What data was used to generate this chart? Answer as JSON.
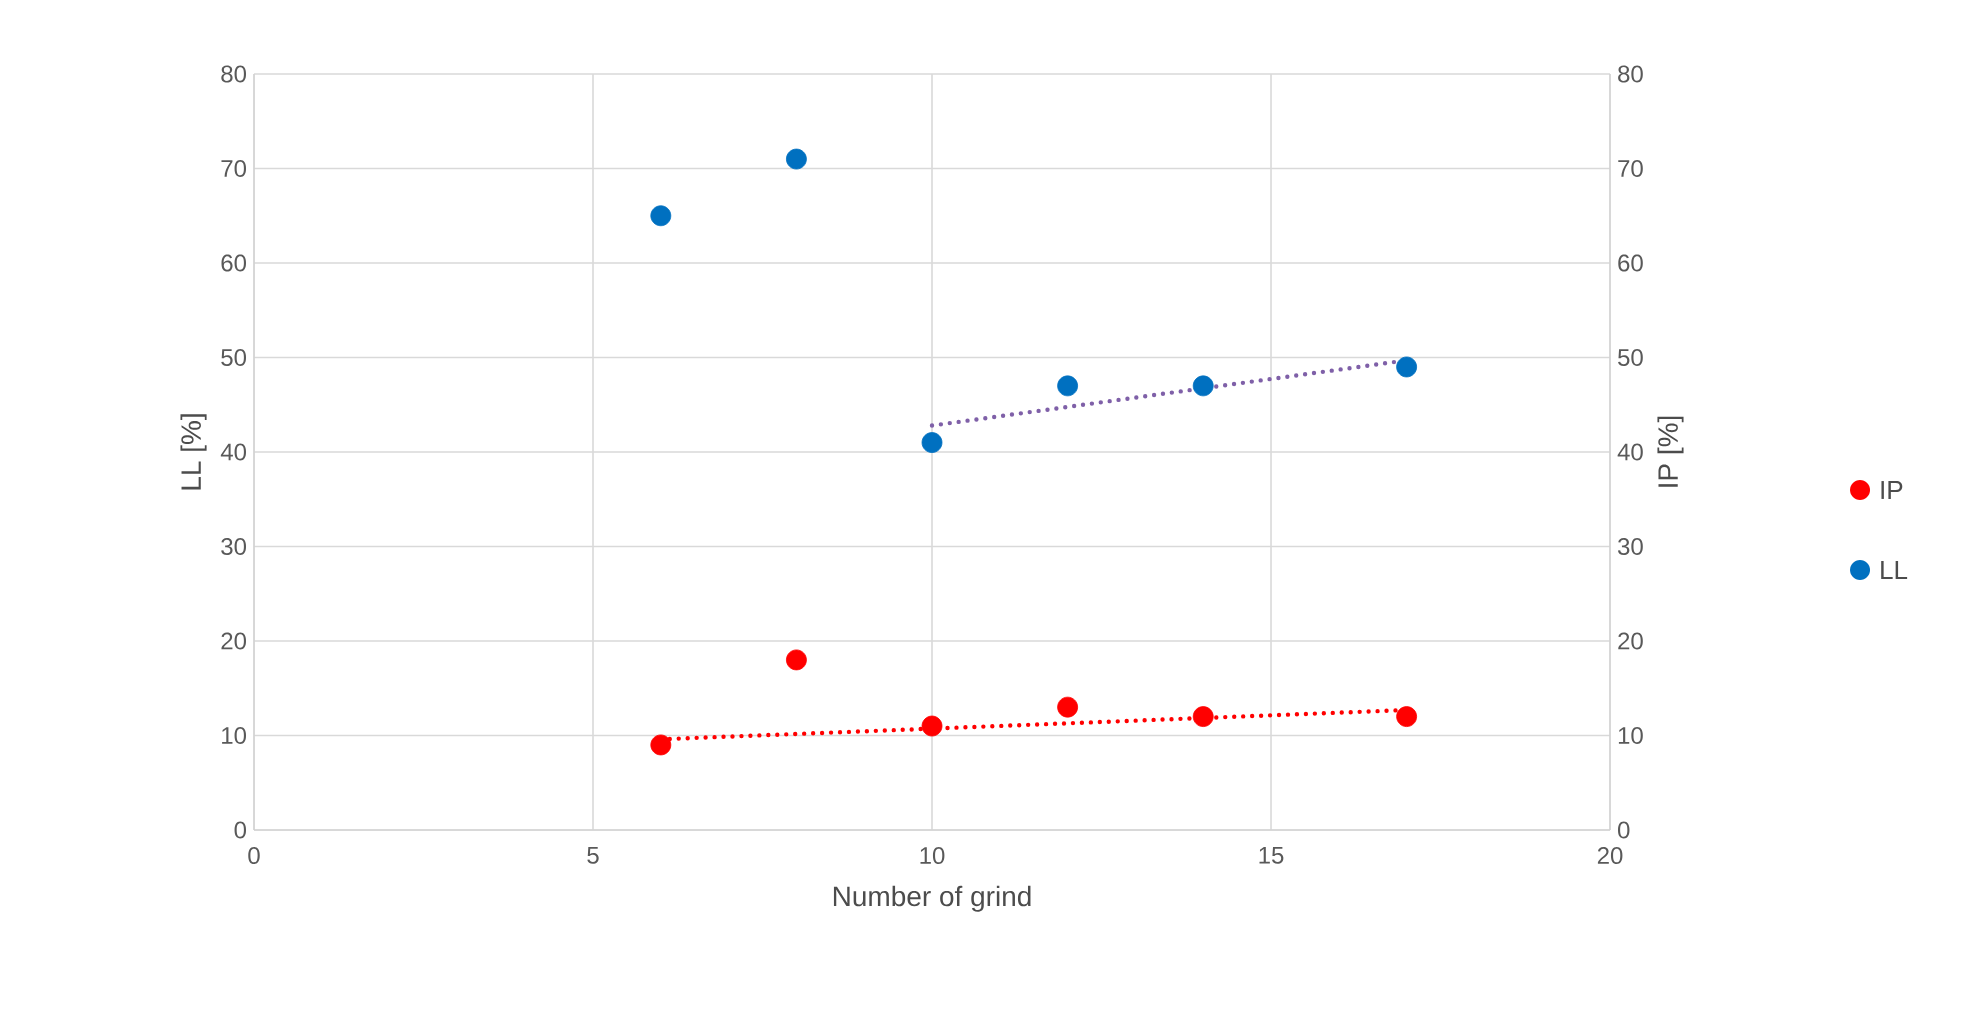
{
  "chart_data": {
    "type": "scatter",
    "xlabel": "Number of grind",
    "ylabel": "LL [%]",
    "y2label": "IP [%]",
    "xlim": [
      0,
      20
    ],
    "xticks": [
      0,
      5,
      10,
      15,
      20
    ],
    "ylim": [
      0,
      80
    ],
    "yticks": [
      0,
      10,
      20,
      30,
      40,
      50,
      60,
      70,
      80
    ],
    "y2lim": [
      0,
      80
    ],
    "y2ticks": [
      0,
      10,
      20,
      30,
      40,
      50,
      60,
      70,
      80
    ],
    "grid": true,
    "legend": "right",
    "marker": "circle",
    "series": [
      {
        "type": "line",
        "line_style": "dotted",
        "marker": "none",
        "color": "#7f60a8",
        "x": [
          10,
          17
        ],
        "values": [
          42.8,
          49.7
        ]
      },
      {
        "type": "line",
        "line_style": "dotted",
        "marker": "none",
        "color": "#ff0000",
        "axis": "y2",
        "x": [
          6,
          17
        ],
        "values": [
          9.6,
          12.7
        ]
      },
      {
        "name": "IP",
        "color": "#ff0000",
        "axis": "y2",
        "x": [
          6,
          10,
          12,
          14,
          17
        ],
        "values": [
          9,
          11,
          13,
          12,
          12
        ]
      },
      {
        "color": "#ff0000",
        "axis": "y2",
        "x": [
          8
        ],
        "values": [
          18
        ]
      },
      {
        "name": "LL",
        "color": "#0070c0",
        "x": [
          10,
          12,
          14,
          17
        ],
        "values": [
          41,
          47,
          47,
          49
        ]
      },
      {
        "color": "#0070c0",
        "x": [
          6,
          8
        ],
        "values": [
          65,
          71
        ]
      }
    ]
  }
}
